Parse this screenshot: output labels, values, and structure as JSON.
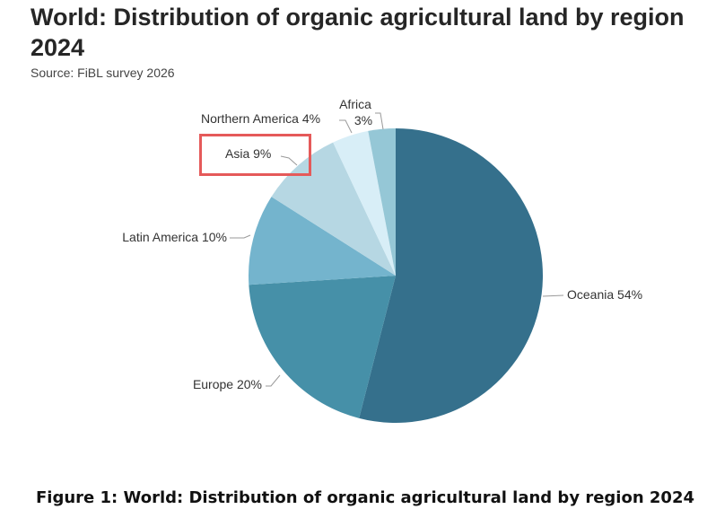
{
  "header": {
    "title": "World: Distribution of organic agricultural land by region 2024",
    "source": "Source: FiBL survey 2026"
  },
  "caption": "Figure 1: World: Distribution of organic agricultural land by region 2024",
  "highlighted_label": "Asia 9%",
  "chart_data": {
    "type": "pie",
    "title": "World: Distribution of organic agricultural land by region 2024",
    "categories": [
      "Oceania",
      "Europe",
      "Latin America",
      "Asia",
      "Northern America",
      "Africa"
    ],
    "values": [
      54,
      20,
      10,
      9,
      4,
      3
    ],
    "labels": [
      "Oceania 54%",
      "Europe 20%",
      "Latin America 10%",
      "Asia 9%",
      "Northern America 4%",
      "Africa 3%"
    ],
    "colors": [
      "#35708c",
      "#4690a8",
      "#74b4cd",
      "#b6d7e3",
      "#d8eef7",
      "#95c7d6"
    ],
    "start": "12 o'clock, clockwise"
  }
}
